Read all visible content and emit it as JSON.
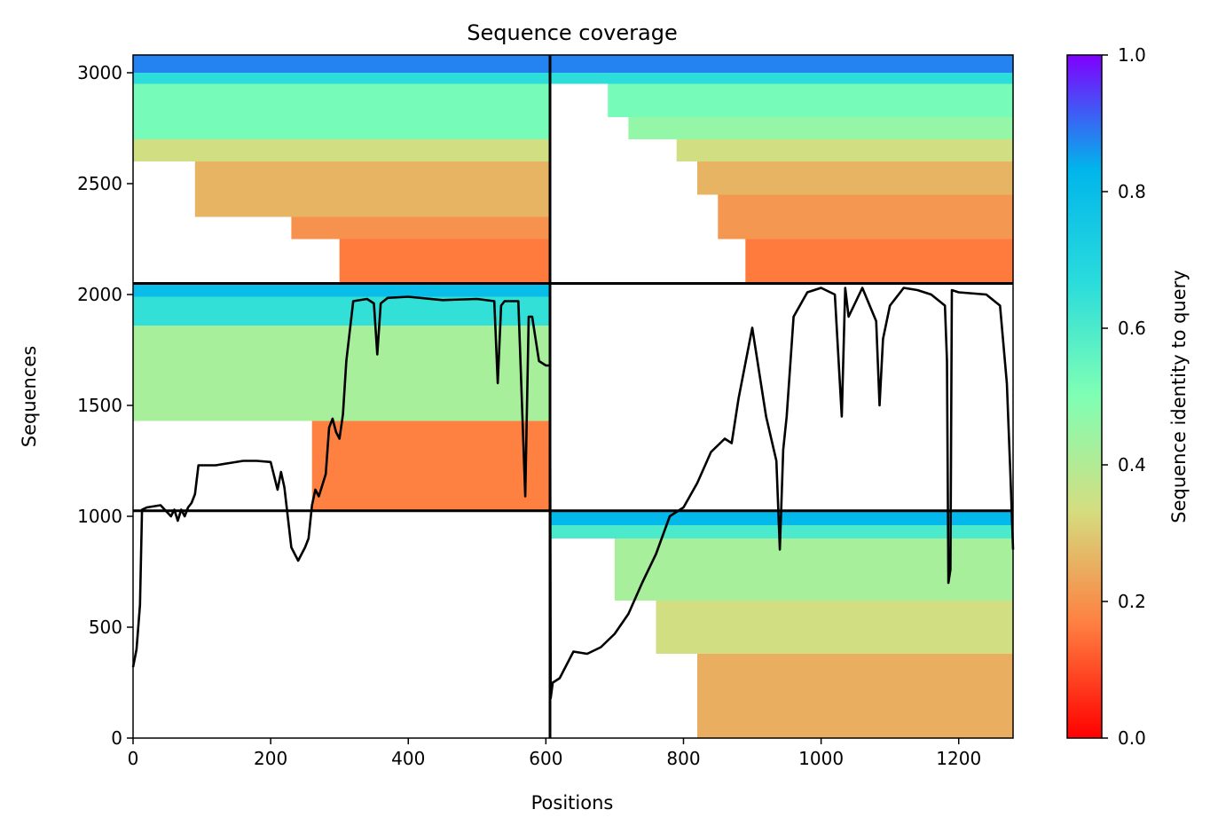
{
  "chart_data": {
    "type": "heatmap",
    "title": "Sequence coverage",
    "xlabel": "Positions",
    "ylabel": "Sequences",
    "xlim": [
      0,
      1279
    ],
    "ylim": [
      0,
      3080
    ],
    "x_ticks": [
      "0",
      "200",
      "400",
      "600",
      "800",
      "1000",
      "1200"
    ],
    "x_tick_values": [
      0,
      200,
      400,
      600,
      800,
      1000,
      1200
    ],
    "y_ticks": [
      "0",
      "500",
      "1000",
      "1500",
      "2000",
      "2500",
      "3000"
    ],
    "y_tick_values": [
      0,
      500,
      1000,
      1500,
      2000,
      2500,
      3000
    ],
    "colorbar": {
      "label": "Sequence identity to query",
      "colormap": "rainbow_r",
      "range": [
        0.0,
        1.0
      ],
      "ticks": [
        "0.0",
        "0.2",
        "0.4",
        "0.6",
        "0.8",
        "1.0"
      ],
      "tick_values": [
        0.0,
        0.2,
        0.4,
        0.6,
        0.8,
        1.0
      ],
      "colors": [
        "#ff0000",
        "#ff7f40",
        "#d4dd80",
        "#80ffb4",
        "#2adcdc",
        "#00b5eb",
        "#8000ff"
      ]
    },
    "grid": false,
    "boundaries": {
      "x": [
        606
      ],
      "y": [
        1025,
        2050
      ]
    },
    "blocks": [
      {
        "region": "chain-1-msa-1",
        "x_range": [
          0,
          606
        ],
        "y_range": [
          2050,
          3080
        ],
        "bands": [
          {
            "y": [
              3000,
              3080
            ],
            "x_start": 0,
            "identity": 0.88
          },
          {
            "y": [
              2950,
              3000
            ],
            "x_start": 0,
            "identity": 0.66
          },
          {
            "y": [
              2700,
              2950
            ],
            "x_start": 0,
            "identity": 0.52
          },
          {
            "y": [
              2600,
              2700
            ],
            "x_start": 0,
            "identity": 0.34
          },
          {
            "y": [
              2350,
              2600
            ],
            "x_start": 90,
            "identity": 0.26
          },
          {
            "y": [
              2250,
              2350
            ],
            "x_start": 230,
            "identity": 0.2
          },
          {
            "y": [
              2050,
              2250
            ],
            "x_start": 300,
            "identity": 0.16
          }
        ]
      },
      {
        "region": "chain-2-msa-1",
        "x_range": [
          606,
          1279
        ],
        "y_range": [
          2050,
          3080
        ],
        "bands": [
          {
            "y": [
              3000,
              3080
            ],
            "x_start": 606,
            "identity": 0.88
          },
          {
            "y": [
              2950,
              3000
            ],
            "x_start": 606,
            "identity": 0.66
          },
          {
            "y": [
              2800,
              2950
            ],
            "x_start": 690,
            "identity": 0.52
          },
          {
            "y": [
              2700,
              2800
            ],
            "x_start": 720,
            "identity": 0.46
          },
          {
            "y": [
              2600,
              2700
            ],
            "x_start": 790,
            "identity": 0.34
          },
          {
            "y": [
              2450,
              2600
            ],
            "x_start": 820,
            "identity": 0.26
          },
          {
            "y": [
              2250,
              2450
            ],
            "x_start": 850,
            "identity": 0.21
          },
          {
            "y": [
              2050,
              2250
            ],
            "x_start": 890,
            "identity": 0.16
          }
        ]
      },
      {
        "region": "chain-1-msa-2",
        "x_range": [
          0,
          606
        ],
        "y_range": [
          1025,
          2050
        ],
        "bands": [
          {
            "y": [
              1990,
              2050
            ],
            "x_start": 0,
            "identity": 0.8
          },
          {
            "y": [
              1860,
              1990
            ],
            "x_start": 0,
            "identity": 0.65
          },
          {
            "y": [
              1430,
              1860
            ],
            "x_start": 0,
            "identity": 0.42
          },
          {
            "y": [
              1025,
              1430
            ],
            "x_start": 260,
            "identity": 0.17
          }
        ]
      },
      {
        "region": "chain-2-msa-3",
        "x_range": [
          606,
          1279
        ],
        "y_range": [
          0,
          1025
        ],
        "bands": [
          {
            "y": [
              960,
              1025
            ],
            "x_start": 606,
            "identity": 0.82
          },
          {
            "y": [
              900,
              960
            ],
            "x_start": 606,
            "identity": 0.6
          },
          {
            "y": [
              620,
              900
            ],
            "x_start": 700,
            "identity": 0.42
          },
          {
            "y": [
              380,
              620
            ],
            "x_start": 760,
            "identity": 0.34
          },
          {
            "y": [
              0,
              380
            ],
            "x_start": 820,
            "identity": 0.25
          }
        ]
      }
    ],
    "coverage_line": {
      "x": [
        0,
        5,
        10,
        13,
        20,
        40,
        55,
        60,
        65,
        70,
        75,
        80,
        85,
        90,
        95,
        100,
        120,
        140,
        160,
        180,
        200,
        210,
        215,
        220,
        230,
        240,
        245,
        250,
        255,
        260,
        265,
        270,
        280,
        285,
        290,
        295,
        300,
        305,
        310,
        320,
        340,
        350,
        355,
        360,
        370,
        400,
        450,
        500,
        525,
        530,
        535,
        540,
        560,
        570,
        575,
        580,
        590,
        600,
        606,
        607,
        610,
        620,
        640,
        660,
        680,
        700,
        720,
        740,
        760,
        780,
        800,
        820,
        840,
        860,
        870,
        880,
        900,
        920,
        935,
        940,
        945,
        950,
        960,
        980,
        1000,
        1020,
        1030,
        1035,
        1040,
        1060,
        1080,
        1085,
        1090,
        1100,
        1120,
        1140,
        1160,
        1180,
        1183,
        1185,
        1188,
        1190,
        1200,
        1240,
        1260,
        1270,
        1275,
        1279
      ],
      "y": [
        320,
        400,
        600,
        1030,
        1040,
        1050,
        1000,
        1030,
        980,
        1030,
        1000,
        1040,
        1060,
        1100,
        1230,
        1230,
        1230,
        1240,
        1250,
        1250,
        1245,
        1120,
        1200,
        1130,
        860,
        800,
        830,
        860,
        900,
        1050,
        1120,
        1090,
        1190,
        1400,
        1440,
        1380,
        1350,
        1460,
        1700,
        1970,
        1980,
        1960,
        1730,
        1960,
        1985,
        1990,
        1975,
        1980,
        1970,
        1600,
        1950,
        1970,
        1970,
        1090,
        1900,
        1900,
        1700,
        1680,
        1680,
        180,
        250,
        270,
        390,
        380,
        410,
        470,
        560,
        700,
        830,
        1000,
        1040,
        1150,
        1290,
        1350,
        1330,
        1530,
        1850,
        1450,
        1250,
        850,
        1300,
        1450,
        1900,
        2010,
        2030,
        2000,
        1450,
        2030,
        1900,
        2030,
        1880,
        1500,
        1800,
        1950,
        2030,
        2020,
        2000,
        1950,
        1700,
        700,
        760,
        2020,
        2010,
        2000,
        1950,
        1600,
        1200,
        850
      ]
    }
  }
}
